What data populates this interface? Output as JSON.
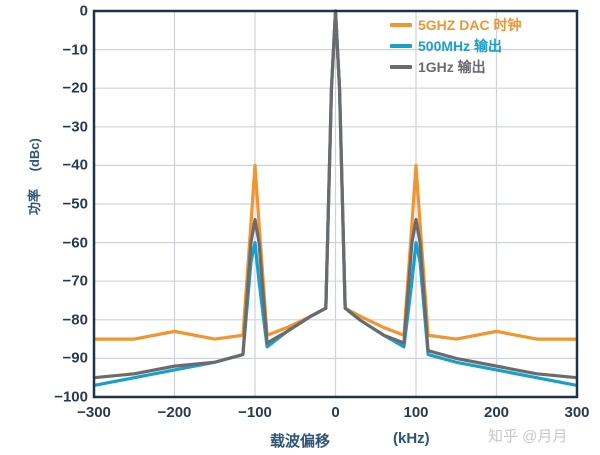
{
  "chart_data": {
    "type": "line",
    "title": "",
    "xlabel": "载波偏移 (kHz)",
    "ylabel": "功率 (dBc)",
    "xlim": [
      -300,
      300
    ],
    "ylim": [
      -100,
      0
    ],
    "x_ticks": [
      -300,
      -200,
      -100,
      0,
      100,
      200,
      300
    ],
    "y_ticks": [
      0,
      -10,
      -20,
      -30,
      -40,
      -50,
      -60,
      -70,
      -80,
      -90,
      -100
    ],
    "grid": true,
    "legend_position": "upper right",
    "x": [
      -300,
      -250,
      -200,
      -150,
      -115,
      -105,
      -100,
      -95,
      -85,
      -60,
      -30,
      -12,
      -5,
      0,
      5,
      12,
      30,
      60,
      85,
      95,
      100,
      105,
      115,
      150,
      200,
      250,
      300
    ],
    "series": [
      {
        "name": "5GHZ DAC 时钟",
        "color": "#f0952f",
        "values": [
          -85,
          -85,
          -83,
          -85,
          -84,
          -55,
          -40,
          -55,
          -84,
          -82,
          -79,
          -77,
          -20,
          0,
          -20,
          -77,
          -79,
          -82,
          -84,
          -55,
          -40,
          -55,
          -84,
          -85,
          -83,
          -85,
          -85
        ]
      },
      {
        "name": "500MHz 输出",
        "color": "#1aa0c8",
        "values": [
          -97,
          -95,
          -93,
          -91,
          -89,
          -65,
          -60,
          -70,
          -87,
          -83,
          -79,
          -77,
          -20,
          0,
          -20,
          -77,
          -80,
          -84,
          -87,
          -70,
          -60,
          -65,
          -89,
          -91,
          -93,
          -95,
          -97
        ]
      },
      {
        "name": "1GHz 输出",
        "color": "#6b6b6f",
        "values": [
          -95,
          -94,
          -92,
          -91,
          -89,
          -60,
          -54,
          -60,
          -86,
          -83,
          -79,
          -77,
          -20,
          0,
          -20,
          -77,
          -80,
          -84,
          -86,
          -60,
          -54,
          -60,
          -88,
          -90,
          -92,
          -94,
          -95
        ]
      }
    ]
  },
  "axis": {
    "y_tick_labels": [
      "0",
      "−10",
      "−20",
      "−30",
      "−40",
      "−50",
      "−60",
      "−70",
      "−80",
      "−90",
      "−100"
    ],
    "x_tick_labels": [
      "−300",
      "−200",
      "−100",
      "0",
      "100",
      "200",
      "300"
    ],
    "ylabel_text": "功率",
    "ylabel_unit": "(dBc)",
    "xlabel_text": "载波偏移",
    "xlabel_unit": "(kHz)"
  },
  "legend": {
    "items": [
      {
        "label": "5GHZ DAC 时钟",
        "color": "#f0952f"
      },
      {
        "label": "500MHz 输出",
        "color": "#1aa0c8"
      },
      {
        "label": "1GHz 输出",
        "color": "#6b6b6f"
      }
    ]
  },
  "watermark": "知乎 @月月"
}
